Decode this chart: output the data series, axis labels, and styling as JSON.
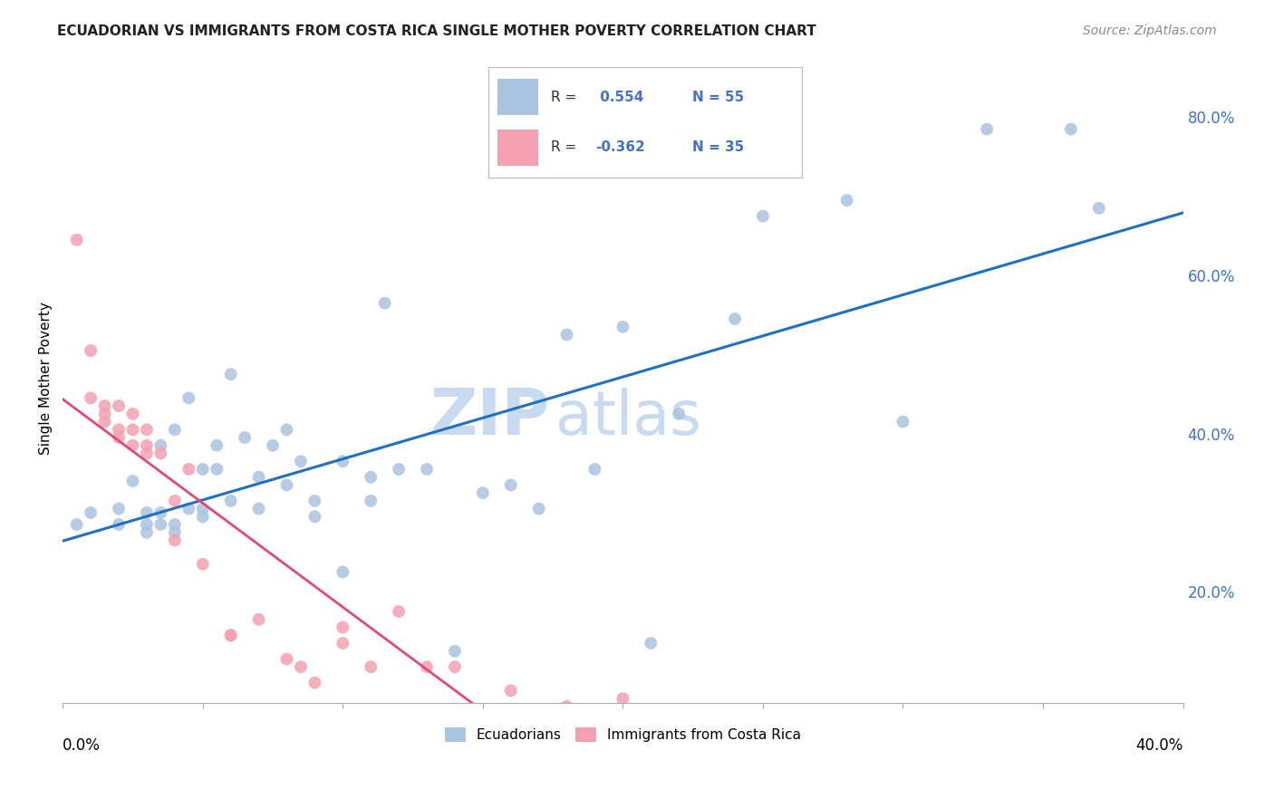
{
  "title": "ECUADORIAN VS IMMIGRANTS FROM COSTA RICA SINGLE MOTHER POVERTY CORRELATION CHART",
  "source": "Source: ZipAtlas.com",
  "ylabel": "Single Mother Poverty",
  "ylabel_right_ticks": [
    0.2,
    0.4,
    0.6,
    0.8
  ],
  "ylabel_right_labels": [
    "20.0%",
    "40.0%",
    "60.0%",
    "80.0%"
  ],
  "xlim": [
    0.0,
    0.4
  ],
  "ylim": [
    0.06,
    0.88
  ],
  "blue_R": 0.554,
  "blue_N": 55,
  "pink_R": -0.362,
  "pink_N": 35,
  "blue_color": "#a8c4e0",
  "pink_color": "#f4a0b0",
  "blue_line_color": "#2070c0",
  "pink_line_color": "#e04878",
  "pink_dash_color": "#d0c0c8",
  "watermark_color": "#c8daf0",
  "legend_label_blue": "Ecuadorians",
  "legend_label_pink": "Immigrants from Costa Rica",
  "blue_scatter_x": [
    0.005,
    0.01,
    0.02,
    0.02,
    0.025,
    0.03,
    0.03,
    0.03,
    0.035,
    0.035,
    0.035,
    0.04,
    0.04,
    0.04,
    0.045,
    0.045,
    0.05,
    0.05,
    0.05,
    0.055,
    0.055,
    0.06,
    0.06,
    0.065,
    0.07,
    0.07,
    0.075,
    0.08,
    0.08,
    0.085,
    0.09,
    0.09,
    0.1,
    0.1,
    0.11,
    0.11,
    0.115,
    0.12,
    0.13,
    0.14,
    0.15,
    0.16,
    0.17,
    0.18,
    0.19,
    0.2,
    0.21,
    0.22,
    0.24,
    0.25,
    0.28,
    0.3,
    0.33,
    0.36,
    0.37
  ],
  "blue_scatter_y": [
    0.285,
    0.3,
    0.305,
    0.285,
    0.34,
    0.285,
    0.275,
    0.3,
    0.385,
    0.3,
    0.285,
    0.285,
    0.405,
    0.275,
    0.445,
    0.305,
    0.295,
    0.355,
    0.305,
    0.355,
    0.385,
    0.475,
    0.315,
    0.395,
    0.345,
    0.305,
    0.385,
    0.405,
    0.335,
    0.365,
    0.315,
    0.295,
    0.365,
    0.225,
    0.345,
    0.315,
    0.565,
    0.355,
    0.355,
    0.125,
    0.325,
    0.335,
    0.305,
    0.525,
    0.355,
    0.535,
    0.135,
    0.425,
    0.545,
    0.675,
    0.695,
    0.415,
    0.785,
    0.785,
    0.685
  ],
  "pink_scatter_x": [
    0.005,
    0.01,
    0.01,
    0.015,
    0.015,
    0.015,
    0.02,
    0.02,
    0.02,
    0.025,
    0.025,
    0.025,
    0.03,
    0.03,
    0.03,
    0.035,
    0.04,
    0.04,
    0.045,
    0.05,
    0.06,
    0.06,
    0.07,
    0.08,
    0.085,
    0.09,
    0.1,
    0.1,
    0.11,
    0.12,
    0.13,
    0.14,
    0.16,
    0.18,
    0.2
  ],
  "pink_scatter_y": [
    0.645,
    0.505,
    0.445,
    0.435,
    0.425,
    0.415,
    0.435,
    0.405,
    0.395,
    0.425,
    0.405,
    0.385,
    0.405,
    0.385,
    0.375,
    0.375,
    0.315,
    0.265,
    0.355,
    0.235,
    0.145,
    0.145,
    0.165,
    0.115,
    0.105,
    0.085,
    0.155,
    0.135,
    0.105,
    0.175,
    0.105,
    0.105,
    0.075,
    0.055,
    0.065
  ]
}
